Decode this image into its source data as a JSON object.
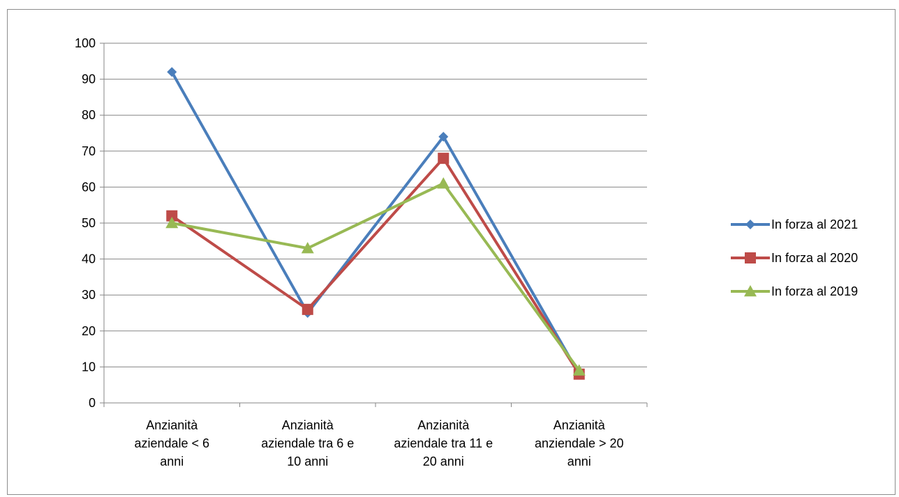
{
  "chart_data": {
    "type": "line",
    "categories": [
      [
        "Anzianità",
        "aziendale < 6",
        "anni"
      ],
      [
        "Anzianità",
        "aziendale tra 6 e",
        "10 anni"
      ],
      [
        "Anzianità",
        "aziendale tra 11 e",
        "20 anni"
      ],
      [
        "Anzianità",
        "anziendale > 20",
        "anni"
      ]
    ],
    "series": [
      {
        "name": "In forza al 2021",
        "values": [
          92,
          25,
          74,
          8
        ],
        "color": "#4a7ebb",
        "marker": "diamond"
      },
      {
        "name": "In forza al 2020",
        "values": [
          52,
          26,
          68,
          8
        ],
        "color": "#be4b48",
        "marker": "square"
      },
      {
        "name": "In forza al 2019",
        "values": [
          50,
          43,
          61,
          9
        ],
        "color": "#98b954",
        "marker": "triangle"
      }
    ],
    "ylim": [
      0,
      100
    ],
    "yticks": [
      0,
      10,
      20,
      30,
      40,
      50,
      60,
      70,
      80,
      90,
      100
    ],
    "grid": true,
    "legend": "right",
    "grid_color": "#868686",
    "axis_color": "#868686"
  }
}
